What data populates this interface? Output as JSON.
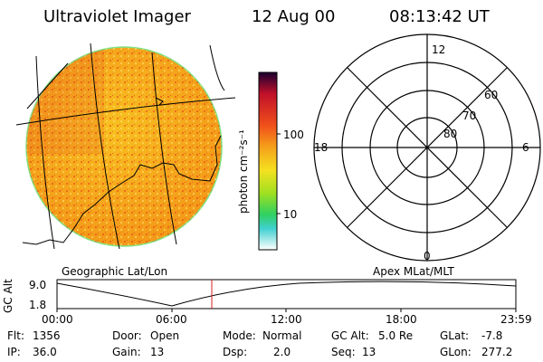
{
  "header": {
    "instrument": "Ultraviolet Imager",
    "date": "12 Aug 00",
    "time": "08:13:42 UT"
  },
  "colorbar": {
    "unit_label": "photon cm⁻²s⁻¹",
    "ticks": [
      "100",
      "10"
    ]
  },
  "polar_plot": {
    "label_top": "12",
    "label_bottom": "0",
    "label_left": "18",
    "label_right": "6",
    "lat_labels": [
      "60",
      "70",
      "80"
    ]
  },
  "image_caption": "Geographic Lat/Lon",
  "polar_caption": "Apex MLat/MLT",
  "altitude_plot": {
    "ylabel": "GC Alt",
    "y_ticks": [
      "9.0",
      "1.8"
    ],
    "x_ticks": [
      "00:00",
      "06:00",
      "12:00",
      "18:00",
      "23:59"
    ]
  },
  "info": {
    "flt_label": "Flt:",
    "flt_value": "1356",
    "ip_label": "IP:",
    "ip_value": "36.0",
    "door_label": "Door:",
    "door_value": "Open",
    "gain_label": "Gain:",
    "gain_value": "13",
    "mode_label": "Mode:",
    "mode_value": "Normal",
    "dsp_label": "Dsp:",
    "dsp_value": "2.0",
    "gcalt_label": "GC Alt:",
    "gcalt_value": "5.0 Re",
    "seq_label": "Seq:",
    "seq_value": "13",
    "glat_label": "GLat:",
    "glat_value": "-7.8",
    "glon_label": "GLon:",
    "glon_value": "277.2"
  }
}
